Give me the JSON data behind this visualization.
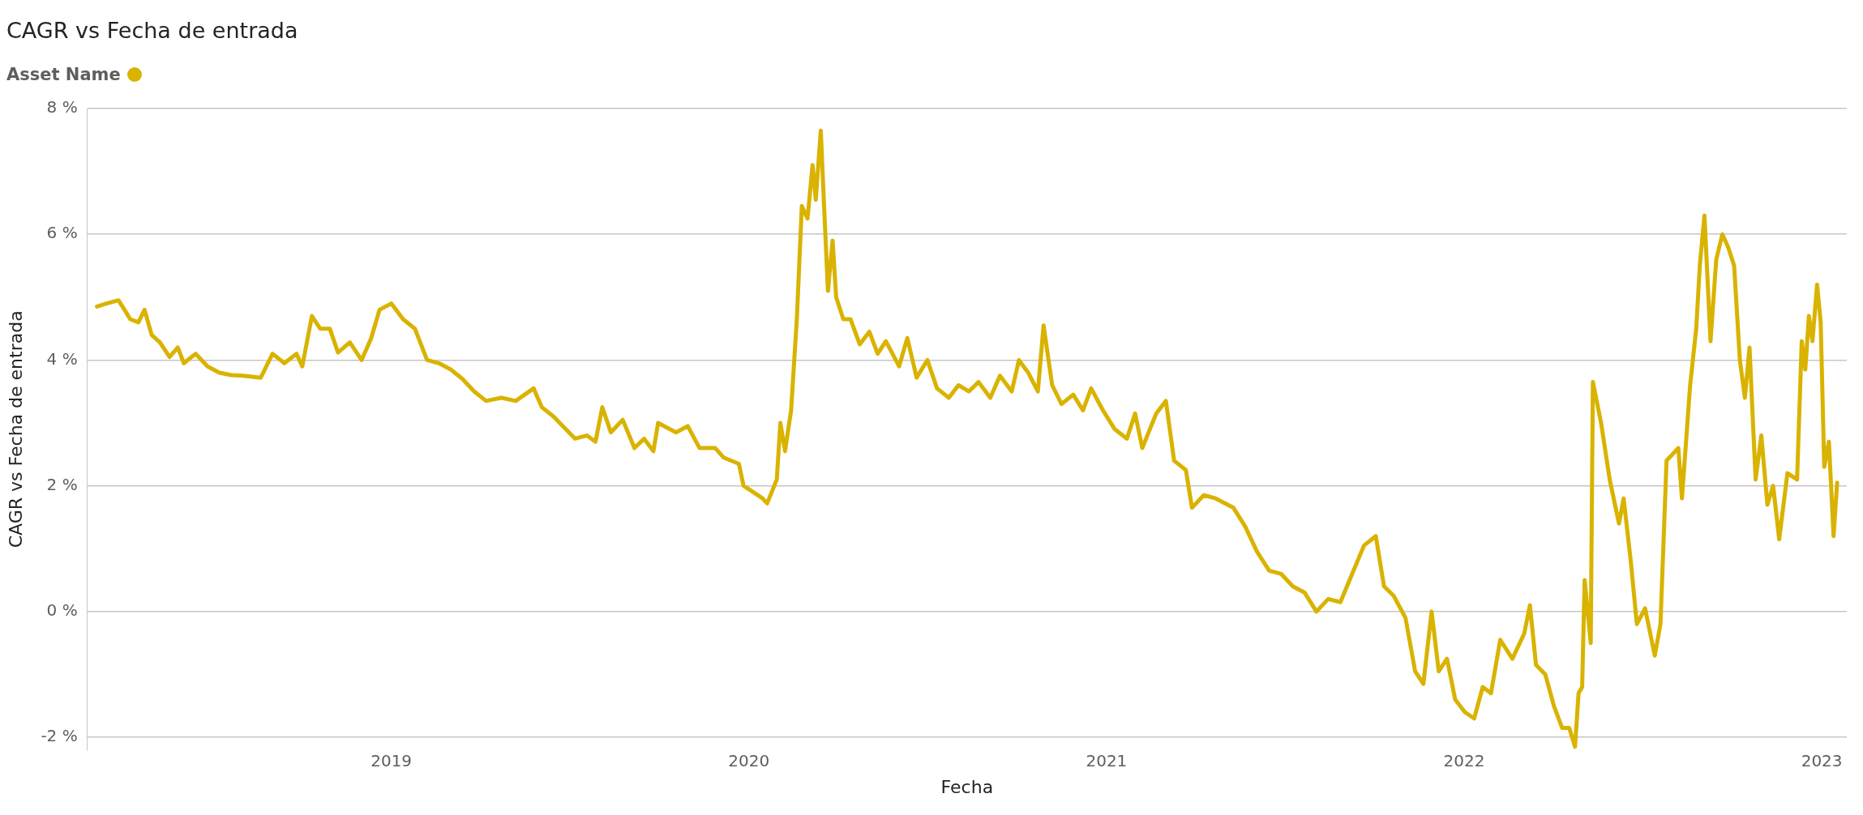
{
  "chart_data": {
    "type": "line",
    "title": "CAGR vs Fecha de entrada",
    "xlabel": "Fecha",
    "ylabel": "CAGR vs Fecha de entrada",
    "legend_title": "Asset Name",
    "grid": "y",
    "marker": "none",
    "line_style": "solid",
    "xlim": [
      2018.15,
      2023.07
    ],
    "xticks": [
      2019,
      2020,
      2021,
      2022,
      2023
    ],
    "ylim": [
      -2.2,
      8
    ],
    "yticks": [
      {
        "value": -2,
        "label": "-2 %"
      },
      {
        "value": 0,
        "label": "0 %"
      },
      {
        "value": 2,
        "label": "2 %"
      },
      {
        "value": 4,
        "label": "4 %"
      },
      {
        "value": 6,
        "label": "6 %"
      },
      {
        "value": 8,
        "label": "8 %"
      }
    ],
    "series": [
      {
        "color": "#d9b300",
        "x": [
          2018.177,
          2018.204,
          2018.237,
          2018.254,
          2018.27,
          2018.293,
          2018.31,
          2018.33,
          2018.353,
          2018.38,
          2018.403,
          2018.42,
          2018.453,
          2018.486,
          2018.519,
          2018.552,
          2018.585,
          2018.635,
          2018.668,
          2018.701,
          2018.735,
          2018.751,
          2018.778,
          2018.801,
          2018.828,
          2018.851,
          2018.884,
          2018.917,
          2018.944,
          2018.967,
          2019.0,
          2019.033,
          2019.066,
          2019.1,
          2019.133,
          2019.166,
          2019.199,
          2019.232,
          2019.265,
          2019.308,
          2019.348,
          2019.398,
          2019.421,
          2019.454,
          2019.488,
          2019.514,
          2019.547,
          2019.571,
          2019.59,
          2019.614,
          2019.647,
          2019.68,
          2019.707,
          2019.733,
          2019.746,
          2019.796,
          2019.829,
          2019.862,
          2019.906,
          2019.929,
          2019.972,
          2019.985,
          2020.012,
          2020.038,
          2020.051,
          2020.078,
          2020.088,
          2020.101,
          2020.118,
          2020.134,
          2020.148,
          2020.164,
          2020.178,
          2020.187,
          2020.201,
          2020.211,
          2020.221,
          2020.234,
          2020.244,
          2020.264,
          2020.284,
          2020.31,
          2020.337,
          2020.36,
          2020.383,
          2020.42,
          2020.443,
          2020.469,
          2020.499,
          2020.526,
          2020.559,
          2020.586,
          2020.615,
          2020.642,
          2020.675,
          2020.702,
          2020.735,
          2020.755,
          2020.781,
          2020.808,
          2020.824,
          2020.848,
          2020.874,
          2020.907,
          2020.934,
          2020.957,
          2020.99,
          2021.023,
          2021.057,
          2021.08,
          2021.1,
          2021.139,
          2021.166,
          2021.189,
          2021.222,
          2021.239,
          2021.272,
          2021.305,
          2021.355,
          2021.388,
          2021.421,
          2021.455,
          2021.488,
          2021.521,
          2021.554,
          2021.587,
          2021.62,
          2021.654,
          2021.687,
          2021.72,
          2021.753,
          2021.776,
          2021.803,
          2021.836,
          2021.863,
          2021.886,
          2021.909,
          2021.929,
          2021.952,
          2021.975,
          2022.002,
          2022.028,
          2022.052,
          2022.075,
          2022.101,
          2022.135,
          2022.168,
          2022.184,
          2022.201,
          2022.227,
          2022.251,
          2022.274,
          2022.294,
          2022.31,
          2022.32,
          2022.33,
          2022.337,
          2022.354,
          2022.36,
          2022.383,
          2022.407,
          2022.433,
          2022.446,
          2022.466,
          2022.483,
          2022.506,
          2022.533,
          2022.549,
          2022.566,
          2022.599,
          2022.609,
          2022.632,
          2022.649,
          2022.659,
          2022.672,
          2022.689,
          2022.705,
          2022.722,
          2022.738,
          2022.755,
          2022.771,
          2022.785,
          2022.798,
          2022.815,
          2022.831,
          2022.848,
          2022.864,
          2022.881,
          2022.904,
          2022.931,
          2022.944,
          2022.954,
          2022.964,
          2022.974,
          2022.987,
          2022.997,
          2023.007,
          2023.02,
          2023.033,
          2023.043
        ],
        "values": [
          4.85,
          4.9,
          4.95,
          4.8,
          4.65,
          4.6,
          4.8,
          4.4,
          4.28,
          4.05,
          4.2,
          3.95,
          4.1,
          3.9,
          3.8,
          3.76,
          3.75,
          3.72,
          4.1,
          3.95,
          4.1,
          3.9,
          4.7,
          4.5,
          4.5,
          4.12,
          4.28,
          4.0,
          4.35,
          4.8,
          4.9,
          4.65,
          4.5,
          4.0,
          3.95,
          3.85,
          3.7,
          3.5,
          3.35,
          3.4,
          3.35,
          3.55,
          3.25,
          3.1,
          2.9,
          2.75,
          2.8,
          2.7,
          3.25,
          2.85,
          3.05,
          2.6,
          2.75,
          2.55,
          3.0,
          2.85,
          2.95,
          2.6,
          2.6,
          2.45,
          2.35,
          2.0,
          1.9,
          1.8,
          1.72,
          2.1,
          3.0,
          2.55,
          3.2,
          4.65,
          6.45,
          6.25,
          7.1,
          6.55,
          7.65,
          6.35,
          5.1,
          5.9,
          5.0,
          4.65,
          4.65,
          4.25,
          4.45,
          4.1,
          4.3,
          3.9,
          4.35,
          3.72,
          4.0,
          3.55,
          3.4,
          3.6,
          3.5,
          3.65,
          3.4,
          3.75,
          3.5,
          4.0,
          3.8,
          3.5,
          4.55,
          3.6,
          3.3,
          3.45,
          3.2,
          3.55,
          3.2,
          2.9,
          2.75,
          3.15,
          2.6,
          3.15,
          3.35,
          2.4,
          2.25,
          1.65,
          1.85,
          1.8,
          1.65,
          1.35,
          0.95,
          0.65,
          0.6,
          0.4,
          0.3,
          0.0,
          0.2,
          0.15,
          0.6,
          1.05,
          1.2,
          0.4,
          0.25,
          -0.1,
          -0.95,
          -1.15,
          0.0,
          -0.95,
          -0.75,
          -1.4,
          -1.6,
          -1.7,
          -1.2,
          -1.3,
          -0.45,
          -0.75,
          -0.35,
          0.1,
          -0.85,
          -1.0,
          -1.5,
          -1.85,
          -1.85,
          -2.15,
          -1.3,
          -1.2,
          0.5,
          -0.5,
          3.65,
          3.0,
          2.1,
          1.4,
          1.8,
          0.8,
          -0.2,
          0.05,
          -0.7,
          -0.2,
          2.4,
          2.6,
          1.8,
          3.6,
          4.5,
          5.5,
          6.3,
          4.3,
          5.6,
          6.0,
          5.8,
          5.5,
          4.0,
          3.4,
          4.2,
          2.1,
          2.8,
          1.7,
          2.0,
          1.15,
          2.2,
          2.1,
          4.3,
          3.85,
          4.7,
          4.3,
          5.2,
          4.6,
          2.3,
          2.7,
          1.2,
          2.05
        ]
      }
    ]
  }
}
